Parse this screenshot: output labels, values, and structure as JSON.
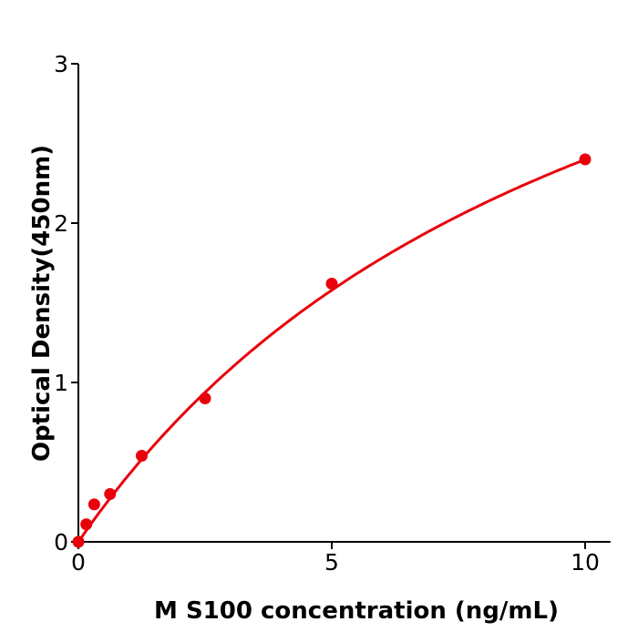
{
  "chart_data": {
    "type": "scatter",
    "title": "",
    "xlabel": "M  S100 concentration (ng/mL)",
    "ylabel": "Optical Density(450nm)",
    "xlim": [
      0,
      10.5
    ],
    "ylim": [
      0,
      3
    ],
    "xticks": [
      0,
      5,
      10
    ],
    "yticks": [
      0,
      1,
      2,
      3
    ],
    "grid": false,
    "series": [
      {
        "x": [
          0,
          0.156,
          0.3125,
          0.625,
          1.25,
          2.5,
          5,
          10
        ],
        "y": [
          0.0,
          0.11,
          0.235,
          0.3,
          0.54,
          0.9,
          1.62,
          2.4
        ],
        "color": "#e8000b",
        "fit_line": true
      }
    ]
  }
}
